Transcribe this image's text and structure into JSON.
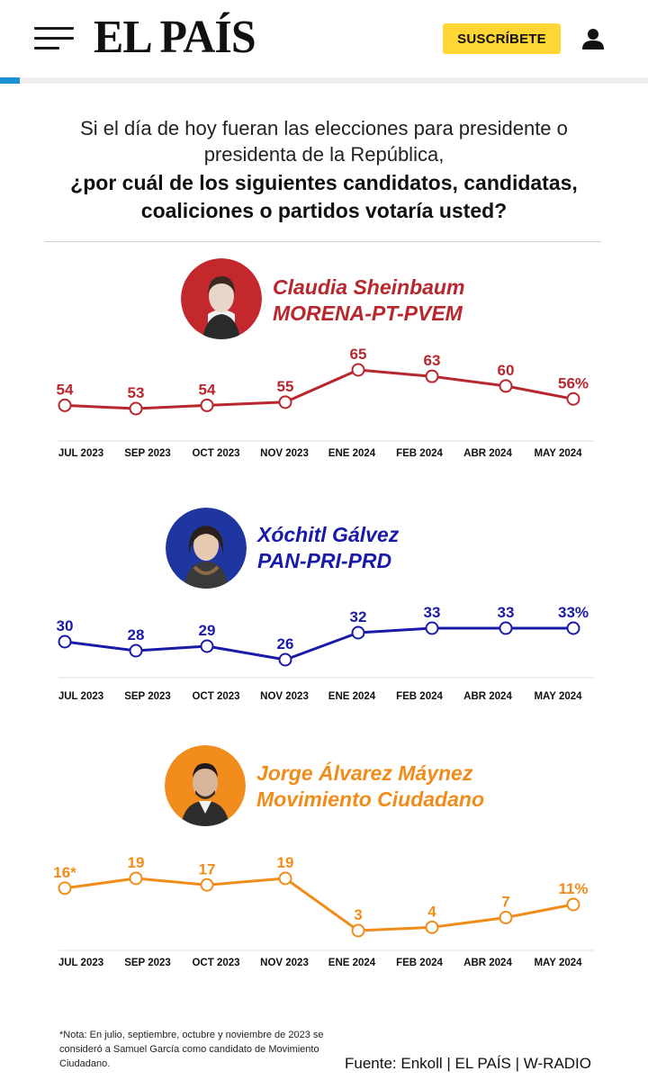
{
  "header": {
    "logo": "EL PAÍS",
    "subscribe_label": "SUSCRÍBETE",
    "icons": [
      "menu-icon",
      "user-icon"
    ],
    "accent_color": "#1e90d6",
    "subscribe_color": "#ffd633"
  },
  "question": {
    "line1": "Si el día de hoy fueran las elecciones para presidente o presidenta de la República,",
    "line2": "¿por cuál de los siguientes candidatos, candidatas, coaliciones o partidos votaría usted?"
  },
  "candidates": [
    {
      "name": "Claudia Sheinbaum",
      "party": "MORENA-PT-PVEM",
      "color": "#b8272d",
      "avatar_bg": "#c3282c"
    },
    {
      "name": "Xóchitl Gálvez",
      "party": "PAN-PRI-PRD",
      "color": "#1a1aa8",
      "avatar_bg": "#1f35a0"
    },
    {
      "name": "Jorge Álvarez Máynez",
      "party": "Movimiento Ciudadano",
      "color": "#f08c1a",
      "avatar_bg": "#f28c1c"
    }
  ],
  "chart_data": [
    {
      "type": "line",
      "x": [
        "JUL 2023",
        "SEP 2023",
        "OCT 2023",
        "NOV 2023",
        "ENE 2024",
        "FEB 2024",
        "ABR 2024",
        "MAY 2024"
      ],
      "series": [
        {
          "name": "Claudia Sheinbaum",
          "values": [
            54,
            53,
            54,
            55,
            65,
            63,
            60,
            56
          ]
        }
      ],
      "labels": [
        "54",
        "53",
        "54",
        "55",
        "65",
        "63",
        "60",
        "56%"
      ],
      "color": "#b8272d",
      "grid": false
    },
    {
      "type": "line",
      "x": [
        "JUL 2023",
        "SEP 2023",
        "OCT 2023",
        "NOV 2023",
        "ENE 2024",
        "FEB 2024",
        "ABR 2024",
        "MAY 2024"
      ],
      "series": [
        {
          "name": "Xóchitl Gálvez",
          "values": [
            30,
            28,
            29,
            26,
            32,
            33,
            33,
            33
          ]
        }
      ],
      "labels": [
        "30",
        "28",
        "29",
        "26",
        "32",
        "33",
        "33",
        "33%"
      ],
      "color": "#1a1aa8",
      "grid": false
    },
    {
      "type": "line",
      "x": [
        "JUL 2023",
        "SEP 2023",
        "OCT 2023",
        "NOV 2023",
        "ENE 2024",
        "FEB 2024",
        "ABR 2024",
        "MAY 2024"
      ],
      "series": [
        {
          "name": "Jorge Álvarez Máynez",
          "values": [
            16,
            19,
            17,
            19,
            3,
            4,
            7,
            11
          ]
        }
      ],
      "labels": [
        "16*",
        "19",
        "17",
        "19",
        "3",
        "4",
        "7",
        "11%"
      ],
      "color": "#f08c1a",
      "grid": false
    }
  ],
  "footer": {
    "note": "*Nota: En julio, septiembre, octubre y noviembre de 2023 se consideró a Samuel García como candidato de Movimiento Ciudadano.",
    "source": "Fuente: Enkoll | EL PAÍS | W-RADIO"
  }
}
